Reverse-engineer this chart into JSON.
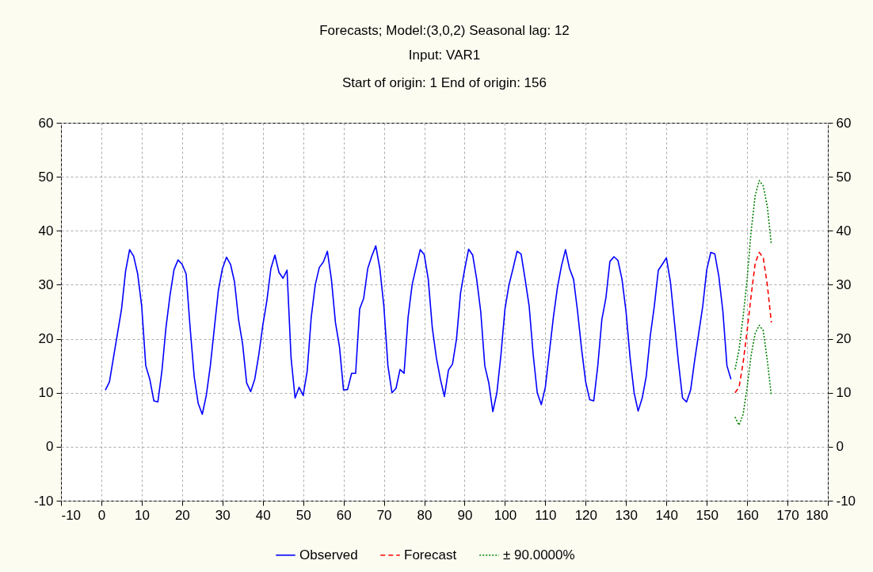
{
  "chart_data": {
    "type": "line",
    "title": "Forecasts; Model:(3,0,2) Seasonal lag: 12",
    "subtitle": "Input: VAR1\nStart of origin: 1 End of origin: 156",
    "xlim": [
      -10,
      180
    ],
    "xticks": [
      -10,
      0,
      10,
      20,
      30,
      40,
      50,
      60,
      70,
      80,
      90,
      100,
      110,
      120,
      130,
      140,
      150,
      160,
      170,
      180
    ],
    "ylim": [
      -10,
      60
    ],
    "yticks": [
      -10,
      0,
      10,
      20,
      30,
      40,
      50,
      60
    ],
    "y2lim": [
      -10,
      60
    ],
    "y2ticks": [
      -10,
      0,
      10,
      20,
      30,
      40,
      50,
      60
    ],
    "grid": true,
    "legend": "bottom",
    "series": [
      {
        "name": "Observed",
        "color": "#0000ff",
        "line_style": "solid",
        "x": [
          1,
          2,
          3,
          4,
          5,
          6,
          7,
          8,
          9,
          10,
          11,
          12,
          13,
          14,
          15,
          16,
          17,
          18,
          19,
          20,
          21,
          22,
          23,
          24,
          25,
          26,
          27,
          28,
          29,
          30,
          31,
          32,
          33,
          34,
          35,
          36,
          37,
          38,
          39,
          40,
          41,
          42,
          43,
          44,
          45,
          46,
          47,
          48,
          49,
          50,
          51,
          52,
          53,
          54,
          55,
          56,
          57,
          58,
          59,
          60,
          61,
          62,
          63,
          64,
          65,
          66,
          67,
          68,
          69,
          70,
          71,
          72,
          73,
          74,
          75,
          76,
          77,
          78,
          79,
          80,
          81,
          82,
          83,
          84,
          85,
          86,
          87,
          88,
          89,
          90,
          91,
          92,
          93,
          94,
          95,
          96,
          97,
          98,
          99,
          100,
          101,
          102,
          103,
          104,
          105,
          106,
          107,
          108,
          109,
          110,
          111,
          112,
          113,
          114,
          115,
          116,
          117,
          118,
          119,
          120,
          121,
          122,
          123,
          124,
          125,
          126,
          127,
          128,
          129,
          130,
          131,
          132,
          133,
          134,
          135,
          136,
          137,
          138,
          139,
          140,
          141,
          142,
          143,
          144,
          145,
          146,
          147,
          148,
          149,
          150,
          151,
          152,
          153,
          154,
          155,
          156
        ],
        "values": [
          10.5,
          12,
          16.5,
          21,
          25.5,
          32.5,
          36.5,
          35.3,
          32,
          26,
          15,
          12.5,
          8.5,
          8.3,
          14,
          22,
          28,
          32.8,
          34.6,
          33.8,
          32,
          22,
          13,
          8,
          6,
          9.5,
          15,
          22,
          29,
          33,
          35.1,
          33.8,
          30.5,
          23.5,
          19,
          11.8,
          10.2,
          12.5,
          17,
          22.5,
          27,
          33,
          35.5,
          32.3,
          31.2,
          32.7,
          16.5,
          9,
          11,
          9.5,
          14,
          24,
          30,
          33.2,
          34.2,
          36.2,
          31,
          23,
          18.5,
          10.5,
          10.6,
          13.6,
          13.6,
          25.5,
          27.5,
          33,
          35.3,
          37.2,
          33,
          26,
          15,
          10,
          10.8,
          14.3,
          13.6,
          24,
          30,
          33.3,
          36.5,
          35.6,
          31,
          22,
          16.5,
          12.5,
          9.3,
          14.2,
          15.3,
          20,
          28.5,
          32.8,
          36.6,
          35.5,
          31,
          25,
          15,
          11.8,
          6.5,
          10,
          17,
          25.5,
          30,
          33,
          36.2,
          35.7,
          31,
          26,
          17,
          10,
          7.8,
          11,
          17.5,
          24,
          29.5,
          33.5,
          36.5,
          33,
          31,
          25,
          18,
          12,
          8.7,
          8.5,
          15,
          23.5,
          27.5,
          34.3,
          35.2,
          34.5,
          31,
          25,
          16.5,
          10,
          6.6,
          9,
          13,
          20.5,
          26,
          32.7,
          33.8,
          35,
          30.5,
          23,
          15.5,
          9,
          8.3,
          10.5,
          16,
          21,
          26,
          32.8,
          36,
          35.7,
          31.5,
          25,
          15,
          12.5
        ]
      },
      {
        "name": "Forecast",
        "color": "#ff0000",
        "line_style": "dashed",
        "x": [
          157,
          158,
          159,
          160,
          161,
          162,
          163,
          164,
          165,
          166
        ],
        "values": [
          10,
          11,
          15.5,
          21.5,
          28,
          34,
          36,
          35,
          30,
          23
        ]
      },
      {
        "name": "± 90.0000%",
        "color": "#008000",
        "line_style": "dotted",
        "x": [
          157,
          158,
          159,
          160,
          161,
          162,
          163,
          164,
          165,
          166
        ],
        "values": [
          14.3,
          18,
          24,
          31,
          40,
          46.5,
          49.3,
          48.3,
          44.5,
          37.5
        ]
      },
      {
        "color": "#008000",
        "line_style": "dotted",
        "x": [
          157,
          158,
          159,
          160,
          161,
          162,
          163,
          164,
          165,
          166
        ],
        "values": [
          5.5,
          4,
          6,
          11,
          17,
          21,
          22.5,
          21.5,
          16,
          9.5
        ]
      }
    ]
  }
}
